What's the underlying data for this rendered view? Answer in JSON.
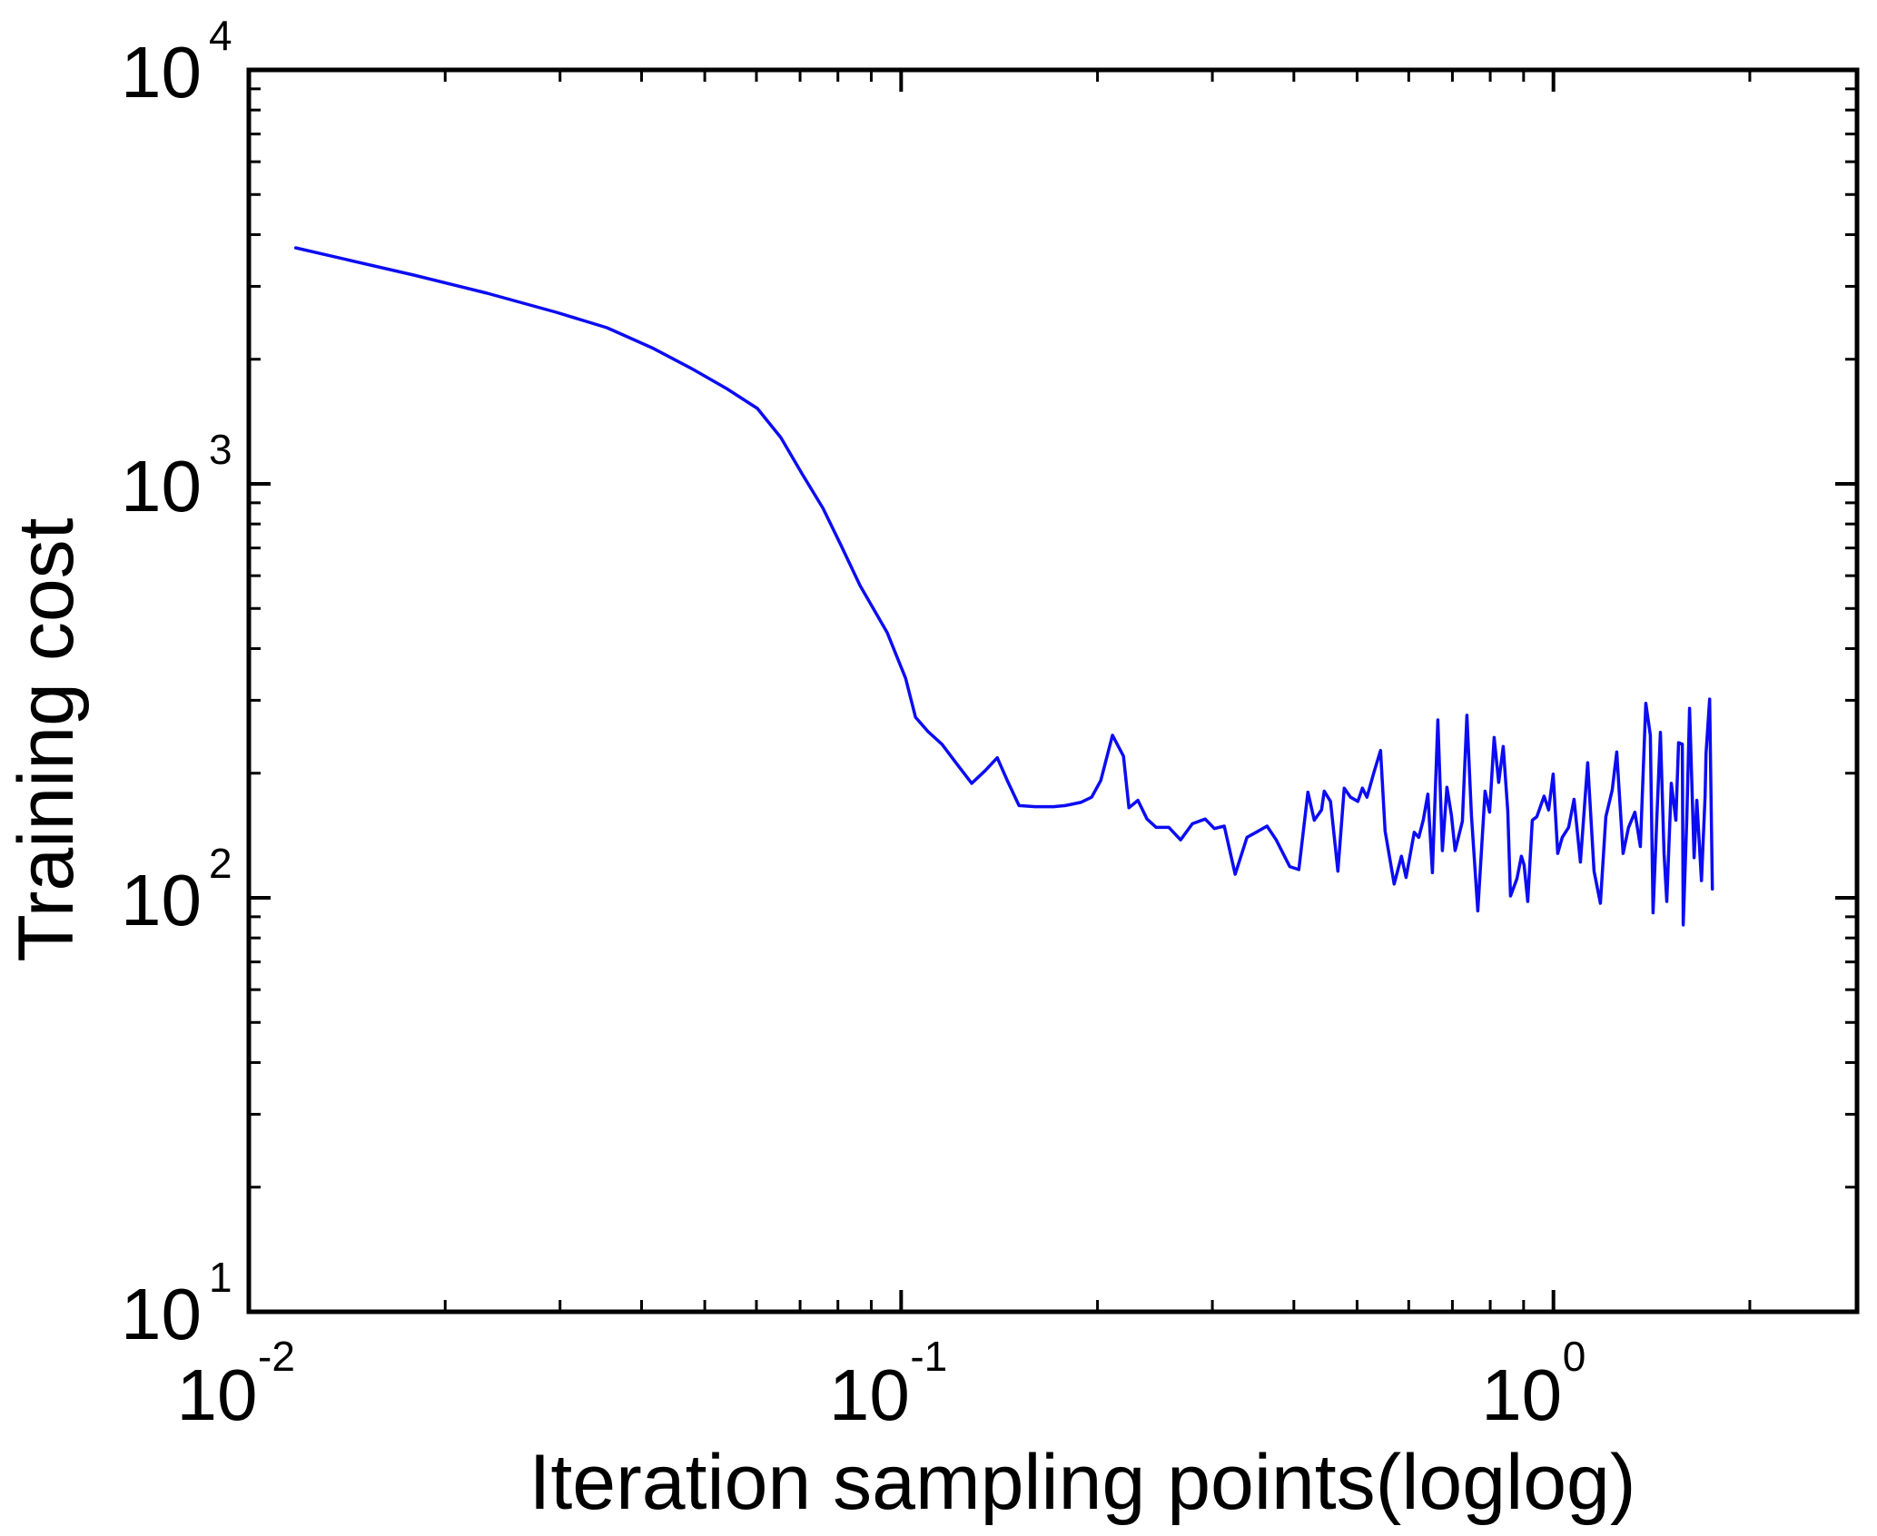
{
  "figure": {
    "background": "#ffffff",
    "axis_color": "#000000",
    "tick_label_base": "10"
  },
  "chart_data": {
    "type": "line",
    "title": "",
    "xlabel": "Iteration sampling points(loglog)",
    "ylabel": "Training cost",
    "xscale": "log",
    "yscale": "log",
    "xlim": [
      0.01,
      2.92
    ],
    "ylim": [
      10,
      10000
    ],
    "grid": false,
    "legend_position": "none",
    "x_tick_exponents": [
      -2,
      -1,
      0
    ],
    "y_tick_exponents": [
      1,
      2,
      3,
      4
    ],
    "series": [
      {
        "name": "Training cost",
        "color": "#0c0cf2",
        "x": [
          0.0118,
          0.0179,
          0.0232,
          0.0296,
          0.0354,
          0.0415,
          0.048,
          0.054,
          0.0602,
          0.0654,
          0.0705,
          0.0759,
          0.0809,
          0.0865,
          0.0952,
          0.1016,
          0.1052,
          0.11,
          0.1155,
          0.1219,
          0.1283,
          0.1346,
          0.1404,
          0.1459,
          0.1516,
          0.1606,
          0.1712,
          0.1785,
          0.1885,
          0.1959,
          0.2023,
          0.2109,
          0.2192,
          0.2235,
          0.2307,
          0.2382,
          0.246,
          0.2573,
          0.2682,
          0.2796,
          0.2925,
          0.3021,
          0.3129,
          0.3252,
          0.339,
          0.3501,
          0.3639,
          0.3758,
          0.3942,
          0.4071,
          0.4203,
          0.4299,
          0.441,
          0.4453,
          0.4553,
          0.4672,
          0.4778,
          0.4886,
          0.5013,
          0.5094,
          0.5177,
          0.5312,
          0.5432,
          0.552,
          0.57,
          0.5848,
          0.5943,
          0.6117,
          0.6216,
          0.6316,
          0.6419,
          0.6523,
          0.665,
          0.6757,
          0.6867,
          0.6978,
          0.7068,
          0.7251,
          0.7369,
          0.7488,
          0.7657,
          0.7855,
          0.7982,
          0.8111,
          0.8242,
          0.8375,
          0.8511,
          0.8593,
          0.8788,
          0.893,
          0.9017,
          0.9133,
          0.928,
          0.943,
          0.9674,
          0.9831,
          0.999,
          1.0151,
          1.0316,
          1.0549,
          1.0755,
          1.0999,
          1.1285,
          1.154,
          1.1802,
          1.2031,
          1.2306,
          1.2504,
          1.2789,
          1.3037,
          1.3333,
          1.3592,
          1.3855,
          1.408,
          1.4215,
          1.4399,
          1.4586,
          1.4776,
          1.4918,
          1.5161,
          1.5407,
          1.5556,
          1.5758,
          1.5809,
          1.6014,
          1.6169,
          1.6431,
          1.659,
          1.686,
          1.7078,
          1.7133,
          1.7356,
          1.7525
        ],
        "y": [
          3717,
          3195,
          2888,
          2597,
          2383,
          2132,
          1889,
          1699,
          1521,
          1294,
          1057,
          873,
          710,
          568,
          437,
          339,
          273,
          252,
          235,
          210,
          189,
          203,
          218,
          190,
          167,
          166,
          166,
          167,
          170,
          175,
          192,
          247,
          220,
          165,
          172,
          155,
          148,
          148,
          138,
          151,
          155,
          147,
          149,
          114,
          140,
          144,
          149,
          138,
          119,
          117,
          180,
          154,
          163,
          181,
          171,
          116,
          184,
          175,
          171,
          184,
          175,
          202,
          227,
          145,
          108,
          126,
          112,
          144,
          140,
          154,
          178,
          115,
          269,
          130,
          185,
          158,
          130,
          153,
          276,
          158,
          93,
          181,
          161,
          244,
          190,
          232,
          162,
          101,
          111,
          126,
          120,
          98,
          154,
          157,
          176,
          163,
          199,
          128,
          140,
          148,
          173,
          122,
          212,
          116,
          97,
          157,
          182,
          225,
          128,
          148,
          161,
          133,
          295,
          247,
          92,
          153,
          251,
          128,
          98,
          189,
          154,
          237,
          235,
          86,
          157,
          287,
          125,
          172,
          110,
          176,
          223,
          302,
          105
        ]
      }
    ]
  }
}
